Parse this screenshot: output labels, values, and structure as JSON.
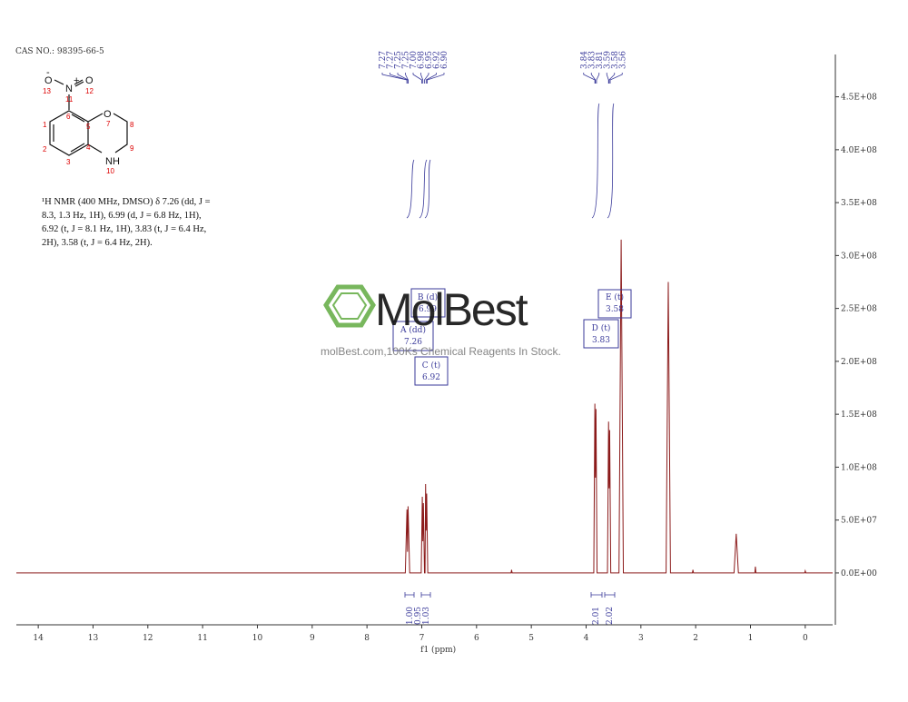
{
  "cas": "CAS NO.: 98395-66-5",
  "structure": {
    "labels": [
      "O",
      "-",
      "N",
      "+",
      "O",
      "13",
      "11",
      "12",
      "6",
      "1",
      "5",
      "7",
      "O",
      "8",
      "2",
      "4",
      "9",
      "3",
      "NH",
      "10"
    ]
  },
  "description": [
    "¹H NMR (400 MHz, DMSO) δ 7.26 (dd, J =",
    "8.3, 1.3 Hz, 1H), 6.99 (d, J = 6.8 Hz, 1H),",
    "6.92 (t, J = 8.1 Hz, 1H), 3.83 (t, J = 6.4 Hz,",
    "2H), 3.58 (t, J = 6.4 Hz, 2H)."
  ],
  "watermark": {
    "logo": "MolBest",
    "tagline": "molBest.com,100Ks Chemical Reagents In Stock."
  },
  "chart_data": {
    "type": "line",
    "xlabel": "f1 (ppm)",
    "xlim": [
      14.4,
      -0.5
    ],
    "xticks": [
      14,
      13,
      12,
      11,
      10,
      9,
      8,
      7,
      6,
      5,
      4,
      3,
      2,
      1,
      0
    ],
    "ylim": [
      -49000000,
      490000000
    ],
    "yticks": [
      {
        "value": 0,
        "label": "0.0E+00"
      },
      {
        "value": 50000000,
        "label": "5.0E+07"
      },
      {
        "value": 100000000,
        "label": "1.0E+08"
      },
      {
        "value": 150000000,
        "label": "1.5E+08"
      },
      {
        "value": 200000000,
        "label": "2.0E+08"
      },
      {
        "value": 250000000,
        "label": "2.5E+08"
      },
      {
        "value": 300000000,
        "label": "3.0E+08"
      },
      {
        "value": 350000000,
        "label": "3.5E+08"
      },
      {
        "value": 400000000,
        "label": "4.0E+08"
      },
      {
        "value": 450000000,
        "label": "4.5E+08"
      }
    ],
    "series": [
      {
        "color": "#8b1a1a",
        "x": [
          14.4,
          7.3,
          7.27,
          7.26,
          7.25,
          7.22,
          7.01,
          6.99,
          6.98,
          6.97,
          6.95,
          6.94,
          6.93,
          6.92,
          6.91,
          6.89,
          5.37,
          5.36,
          5.35,
          3.86,
          3.84,
          3.83,
          3.82,
          3.8,
          3.61,
          3.59,
          3.58,
          3.57,
          3.55,
          3.4,
          3.36,
          3.32,
          2.54,
          2.5,
          2.46,
          2.06,
          2.05,
          2.04,
          1.3,
          1.26,
          1.22,
          0.92,
          0.91,
          0.9,
          0.01,
          0,
          -0.01,
          -0.5
        ],
        "values": [
          0,
          0,
          60000000,
          20000000,
          63000000,
          0,
          0,
          72000000,
          30000000,
          66000000,
          0,
          0,
          84000000,
          40000000,
          75000000,
          0,
          0,
          3000000,
          0,
          0,
          160000000,
          90000000,
          155000000,
          0,
          0,
          143000000,
          80000000,
          135000000,
          0,
          0,
          315000000,
          0,
          0,
          275000000,
          0,
          0,
          3000000,
          0,
          0,
          37000000,
          0,
          0,
          6000000,
          0,
          0,
          2000000,
          0,
          0
        ]
      }
    ],
    "peak_labels": [
      7.27,
      7.27,
      7.25,
      7.25,
      {
        "value": 7,
        "label": "7.00"
      },
      6.98,
      6.95,
      6.92,
      {
        "value": 6.9,
        "label": "6.90"
      },
      3.84,
      3.83,
      3.81,
      3.59,
      3.58,
      3.56
    ],
    "multiplets": [
      {
        "label": "A (dd)",
        "shift": 7.26
      },
      {
        "label": "B (d)",
        "shift": 6.99
      },
      {
        "label": "C (t)",
        "shift": 6.92
      },
      {
        "label": "D (t)",
        "shift": 3.83
      },
      {
        "label": "E (t)",
        "shift": 3.58
      }
    ],
    "integrals": [
      {
        "value": 1,
        "label": "1.00"
      },
      0.95,
      1.03,
      2.01,
      2.02
    ]
  }
}
